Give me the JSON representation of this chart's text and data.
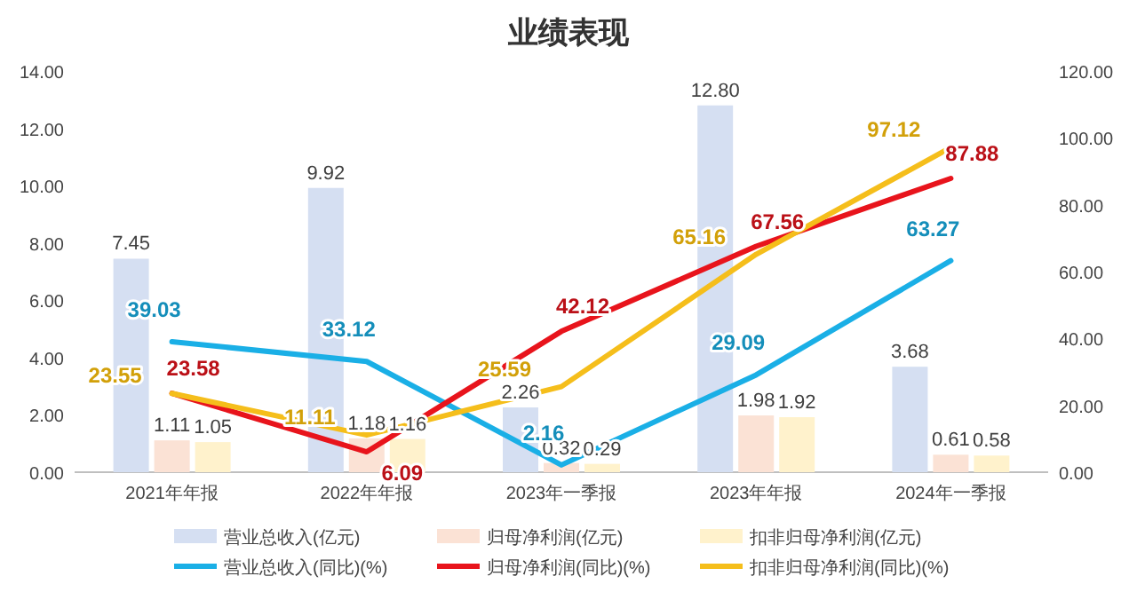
{
  "chart_data": {
    "type": "bar",
    "title": "业绩表现",
    "categories": [
      "2021年年报",
      "2022年年报",
      "2023年一季报",
      "2023年年报",
      "2024年一季报"
    ],
    "series": [
      {
        "name": "营业总收入(亿元)",
        "color": "#d5dff2",
        "values": [
          7.45,
          9.92,
          2.26,
          12.8,
          3.68
        ],
        "value_labels": [
          "7.45",
          "9.92",
          "2.26",
          "12.80",
          "3.68"
        ]
      },
      {
        "name": "归母净利润(亿元)",
        "color": "#fbe2d5",
        "values": [
          1.11,
          1.18,
          0.32,
          1.98,
          0.61
        ],
        "value_labels": [
          "1.11",
          "1.18",
          "0.32",
          "1.98",
          "0.61"
        ]
      },
      {
        "name": "扣非归母净利润(亿元)",
        "color": "#fff2cc",
        "values": [
          1.05,
          1.16,
          0.29,
          1.92,
          0.58
        ],
        "value_labels": [
          "1.05",
          "1.16",
          "0.29",
          "1.92",
          "0.58"
        ]
      },
      {
        "name": "营业总收入(同比)(%)",
        "type": "line",
        "axis": "y2",
        "color": "#1aafe6",
        "values": [
          39.03,
          33.12,
          2.16,
          29.09,
          63.27
        ],
        "value_labels": [
          "39.03",
          "33.12",
          "2.16",
          "29.09",
          "63.27"
        ]
      },
      {
        "name": "归母净利润(同比)(%)",
        "type": "line",
        "axis": "y2",
        "color": "#e8141c",
        "values": [
          23.58,
          6.09,
          42.12,
          67.56,
          87.88
        ],
        "value_labels": [
          "23.58",
          "6.09",
          "42.12",
          "67.56",
          "87.88"
        ]
      },
      {
        "name": "扣非归母净利润(同比)(%)",
        "type": "line",
        "axis": "y2",
        "color": "#f5be1b",
        "values": [
          23.55,
          11.11,
          25.59,
          65.16,
          97.12
        ],
        "value_labels": [
          "23.55",
          "11.11",
          "25.59",
          "65.16",
          "97.12"
        ]
      }
    ],
    "ylim": [
      0,
      14
    ],
    "yticks": [
      {
        "value": 0,
        "label": "0.00"
      },
      {
        "value": 2,
        "label": "2.00"
      },
      {
        "value": 4,
        "label": "4.00"
      },
      {
        "value": 6,
        "label": "6.00"
      },
      {
        "value": 8,
        "label": "8.00"
      },
      {
        "value": 10,
        "label": "10.00"
      },
      {
        "value": 12,
        "label": "12.00"
      },
      {
        "value": 14,
        "label": "14.00"
      }
    ],
    "y2lim": [
      0,
      120
    ],
    "y2ticks": [
      {
        "value": 0,
        "label": "0.00"
      },
      {
        "value": 20,
        "label": "20.00"
      },
      {
        "value": 40,
        "label": "40.00"
      },
      {
        "value": 60,
        "label": "60.00"
      },
      {
        "value": 80,
        "label": "80.00"
      },
      {
        "value": 100,
        "label": "100.00"
      },
      {
        "value": 120,
        "label": "120.00"
      }
    ],
    "legend": "bottom",
    "grid": false,
    "marker": "none",
    "line_style": "solid"
  }
}
